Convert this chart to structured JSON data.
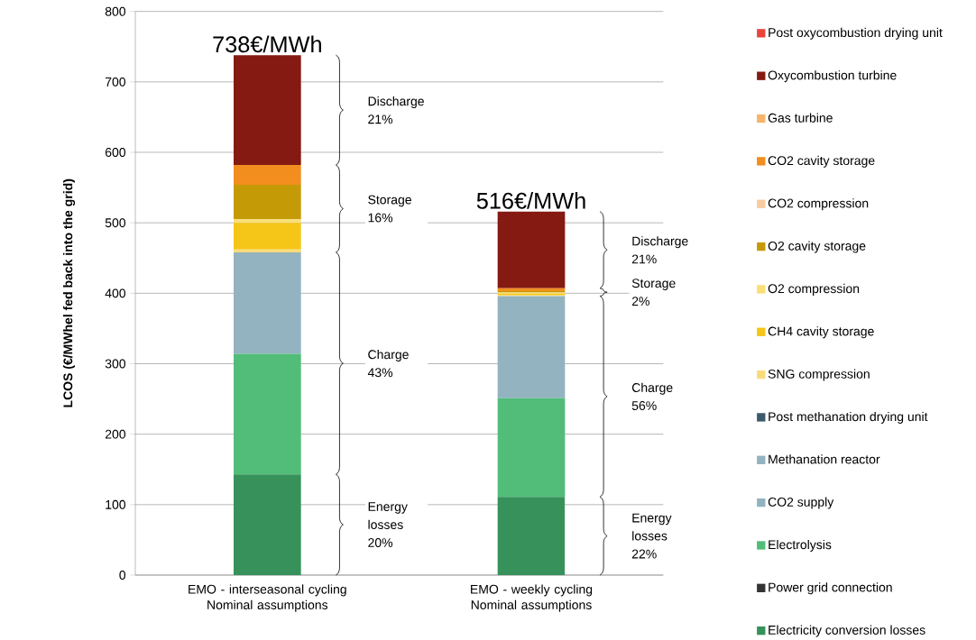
{
  "chart_data": {
    "type": "bar",
    "stacked": true,
    "categories": [
      "EMO - interseasonal cycling Nominal assumptions",
      "EMO - weekly cycling Nominal assumptions"
    ],
    "ylabel": "LCOS (€/MWhel fed back into the grid)",
    "ylim": [
      0,
      800
    ],
    "yticks": [
      0,
      100,
      200,
      300,
      400,
      500,
      600,
      700,
      800
    ],
    "grid": "y",
    "legend": "right",
    "series": [
      {
        "name": "Electricity conversion losses",
        "color": "#36925a",
        "values": [
          143,
          111
        ]
      },
      {
        "name": "Power grid connection",
        "color": "#333333",
        "values": [
          0,
          0
        ]
      },
      {
        "name": "Electrolysis",
        "color": "#51bd78",
        "values": [
          171,
          140
        ]
      },
      {
        "name": "CO2 supply",
        "color": "#93b3c0",
        "values": [
          0,
          0
        ]
      },
      {
        "name": "Methanation reactor",
        "color": "#93b3c0",
        "values": [
          144,
          145
        ]
      },
      {
        "name": "Post methanation drying unit",
        "color": "#3b5a6b",
        "values": [
          0,
          0
        ]
      },
      {
        "name": "SNG compression",
        "color": "#f9dc7a",
        "values": [
          4,
          2
        ]
      },
      {
        "name": "CH4 cavity storage",
        "color": "#f5c518",
        "values": [
          38,
          1
        ]
      },
      {
        "name": "O2 compression",
        "color": "#f9df75",
        "values": [
          5,
          2
        ]
      },
      {
        "name": "O2 cavity storage",
        "color": "#c49a06",
        "values": [
          49,
          2
        ]
      },
      {
        "name": "CO2 compression",
        "color": "#f9cba0",
        "values": [
          null,
          null
        ]
      },
      {
        "name": "CO2 cavity storage",
        "color": "#f28e1e",
        "values": [
          28,
          4
        ]
      },
      {
        "name": "Gas turbine",
        "color": "#f7b46b",
        "values": [
          0,
          0
        ]
      },
      {
        "name": "Oxycombustion turbine",
        "color": "#841a12",
        "values": [
          156,
          109
        ]
      },
      {
        "name": "Post oxycombustion drying unit",
        "color": "#e8453c",
        "values": [
          0,
          0
        ]
      }
    ],
    "totals": [
      "738€/MWh",
      "516€/MWh"
    ],
    "annotations": [
      "Discharge 21%",
      "Storage 16%",
      "Charge 43%",
      "Energy losses 20%",
      "Discharge 21%",
      "Storage 2%",
      "Charge 56%",
      "Energy losses 22%"
    ]
  }
}
